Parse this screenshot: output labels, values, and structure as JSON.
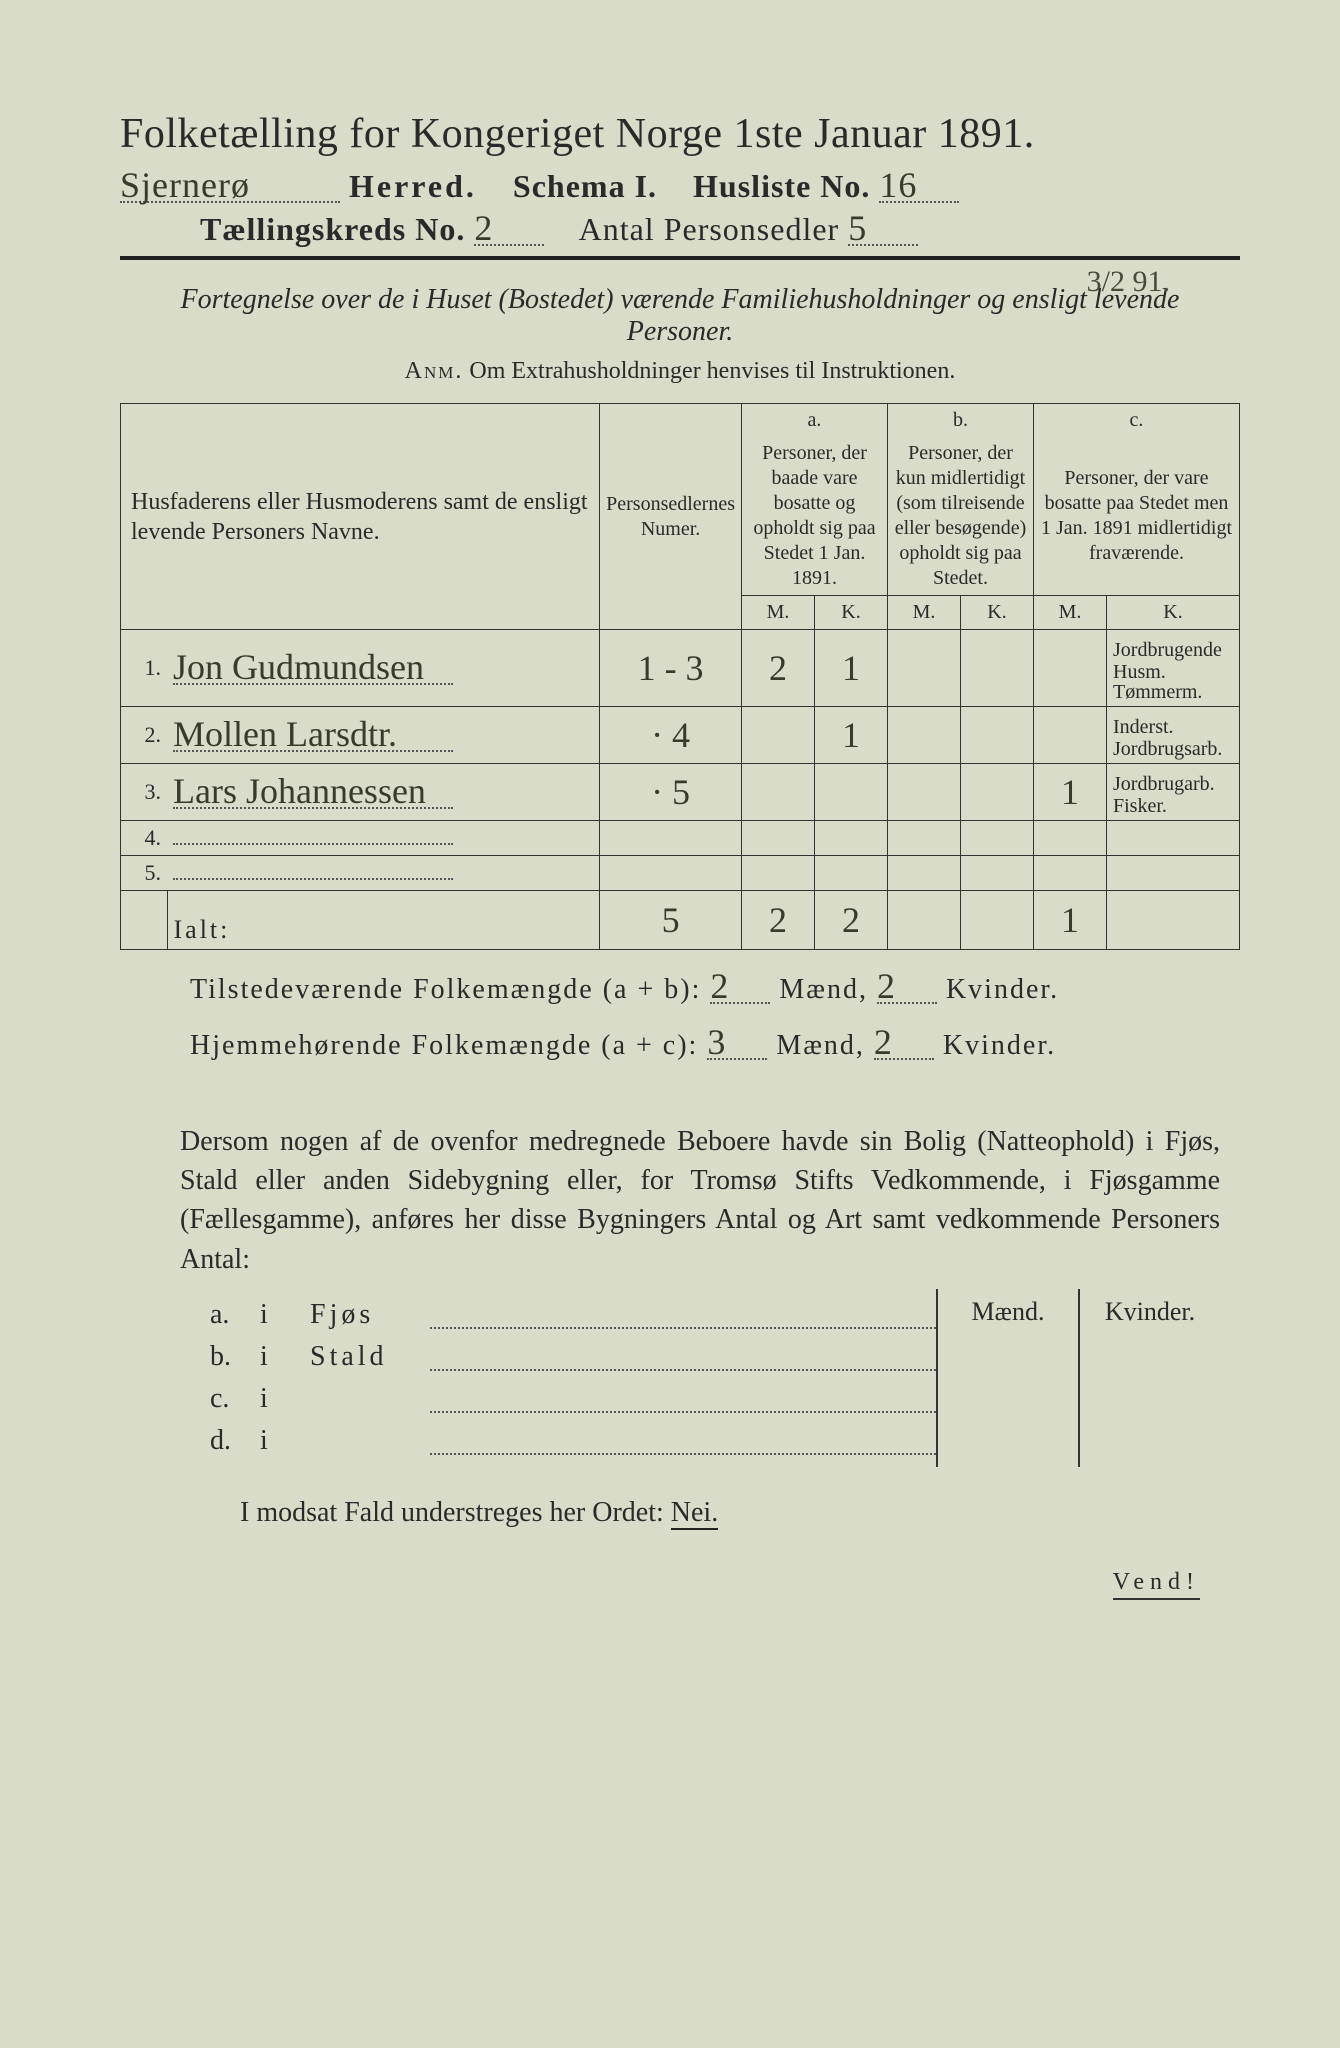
{
  "title": "Folketælling for Kongeriget Norge 1ste Januar 1891.",
  "header": {
    "herred_label": "Herred.",
    "schema_label": "Schema I.",
    "husliste_label": "Husliste No.",
    "kreds_label": "Tællingskreds No.",
    "personsedler_label": "Antal Personsedler",
    "herred_value": "Sjernerø",
    "husliste_value": "16",
    "kreds_value": "2",
    "personsedler_value": "5",
    "corner_date": "3/2 91."
  },
  "instruction_line1": "Fortegnelse over de i Huset (Bostedet) værende Familiehusholdninger og ensligt levende Personer.",
  "instruction_line2_prefix": "Anm.",
  "instruction_line2": "Om Extrahusholdninger henvises til Instruktionen.",
  "table": {
    "col_names": "Husfaderens eller Husmoderens samt de ensligt levende Personers Navne.",
    "col_num": "Personsedlernes Numer.",
    "col_a_head": "a.",
    "col_a": "Personer, der baade vare bosatte og opholdt sig paa Stedet 1 Jan. 1891.",
    "col_b_head": "b.",
    "col_b": "Personer, der kun midlertidigt (som tilreisende eller besøgende) opholdt sig paa Stedet.",
    "col_c_head": "c.",
    "col_c": "Personer, der vare bosatte paa Stedet men 1 Jan. 1891 midlertidigt fraværende.",
    "M": "M.",
    "K": "K.",
    "rows": [
      {
        "n": "1.",
        "name": "Jon Gudmundsen",
        "num": "1 - 3",
        "aM": "2",
        "aK": "1",
        "bM": "",
        "bK": "",
        "cM": "",
        "cK": "",
        "note": "Jordbrugende Husm. Tømmerm."
      },
      {
        "n": "2.",
        "name": "Mollen Larsdtr.",
        "num": "· 4",
        "aM": "",
        "aK": "1",
        "bM": "",
        "bK": "",
        "cM": "",
        "cK": "",
        "note": "Inderst. Jordbrugsarb."
      },
      {
        "n": "3.",
        "name": "Lars Johannessen",
        "num": "· 5",
        "aM": "",
        "aK": "",
        "bM": "",
        "bK": "",
        "cM": "1",
        "cK": "",
        "note": "Jordbrugarb. Fisker."
      },
      {
        "n": "4.",
        "name": "",
        "num": "",
        "aM": "",
        "aK": "",
        "bM": "",
        "bK": "",
        "cM": "",
        "cK": "",
        "note": ""
      },
      {
        "n": "5.",
        "name": "",
        "num": "",
        "aM": "",
        "aK": "",
        "bM": "",
        "bK": "",
        "cM": "",
        "cK": "",
        "note": ""
      }
    ],
    "sum_label": "Ialt:",
    "sum": {
      "num": "5",
      "aM": "2",
      "aK": "2",
      "bM": "",
      "bK": "",
      "cM": "1",
      "cK": ""
    }
  },
  "tilstede": {
    "label": "Tilstedeværende Folkemængde (a + b):",
    "m": "2",
    "m_label": "Mænd,",
    "k": "2",
    "k_label": "Kvinder."
  },
  "hjemme": {
    "label": "Hjemmehørende Folkemængde (a + c):",
    "m": "3",
    "m_label": "Mænd,",
    "k": "2",
    "k_label": "Kvinder."
  },
  "paragraph": "Dersom nogen af de ovenfor medregnede Beboere havde sin Bolig (Natteophold) i Fjøs, Stald eller anden Sidebygning eller, for Tromsø Stifts Vedkommende, i Fjøsgamme (Fællesgamme), anføres her disse Bygningers Antal og Art samt vedkommende Personers Antal:",
  "bygn": {
    "maend": "Mænd.",
    "kvinder": "Kvinder.",
    "rows": [
      {
        "a": "a.",
        "i": "i",
        "label": "Fjøs"
      },
      {
        "a": "b.",
        "i": "i",
        "label": "Stald"
      },
      {
        "a": "c.",
        "i": "i",
        "label": ""
      },
      {
        "a": "d.",
        "i": "i",
        "label": ""
      }
    ]
  },
  "nei_line": "I modsat Fald understreges her Ordet:",
  "nei_word": "Nei.",
  "vend": "Vend!"
}
